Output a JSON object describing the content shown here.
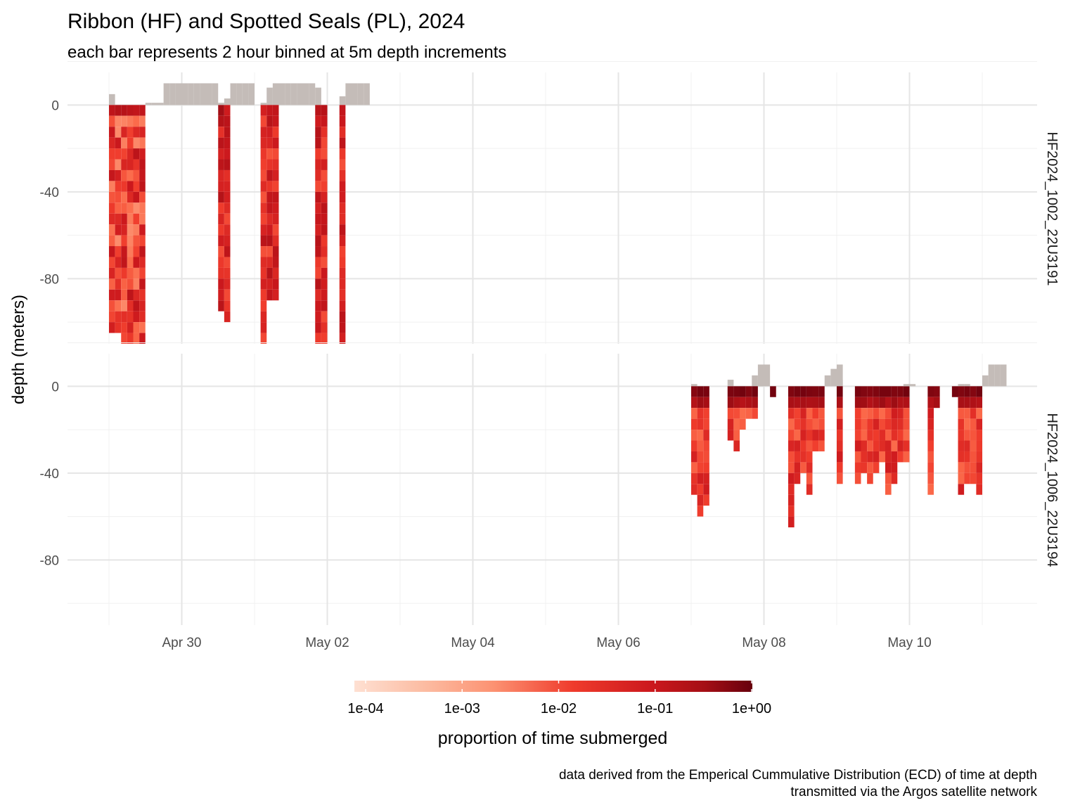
{
  "chart_data": {
    "type": "heatmap",
    "title": "Ribbon (HF) and Spotted Seals (PL), 2024",
    "subtitle": "each bar represents 2 hour binned at 5m depth increments",
    "ylabel": "depth (meters)",
    "yticks": [
      "0",
      "-40",
      "-80"
    ],
    "xticks": [
      "Apr 30",
      "May 02",
      "May 04",
      "May 06",
      "May 08",
      "May 10"
    ],
    "xlim": [
      "2024-04-29 00:00",
      "2024-05-11 20:00"
    ],
    "ylim": [
      -110,
      15
    ],
    "bin_hours": 2,
    "depth_step_m": 5,
    "fill_scale": {
      "title": "proportion of time submerged",
      "trans": "log10",
      "breaks": [
        "1e-04",
        "1e-03",
        "1e-02",
        "1e-01",
        "1e+00"
      ],
      "palette": [
        "#fff5f0",
        "#fcbba1",
        "#fc9272",
        "#fb6a4a",
        "#ef3b2c",
        "#cb181d",
        "#a50f15",
        "#67000d"
      ]
    },
    "panels": [
      {
        "strip_label": "HF2024_1002_22U3191",
        "segments": [
          {
            "start": "2024-04-29 00:00",
            "bins": 6,
            "max_depth": [
              105,
              105,
              110,
              110,
              110,
              110
            ],
            "pattern": "mixed-light",
            "surface": [
              5,
              0,
              0,
              0,
              0,
              0
            ]
          },
          {
            "start": "2024-04-29 12:00",
            "bins": 6,
            "max_depth": [
              0,
              0,
              0,
              0,
              0,
              0
            ],
            "pattern": "none",
            "surface": [
              1,
              1,
              1,
              10,
              10,
              10
            ]
          },
          {
            "start": "2024-04-30 00:00",
            "bins": 6,
            "max_depth": [
              0,
              0,
              0,
              0,
              0,
              0
            ],
            "pattern": "none",
            "surface": [
              10,
              10,
              10,
              10,
              10,
              10
            ]
          },
          {
            "start": "2024-04-30 12:00",
            "bins": 2,
            "max_depth": [
              95,
              100
            ],
            "pattern": "mid",
            "surface": [
              1,
              3
            ]
          },
          {
            "start": "2024-04-30 16:00",
            "bins": 4,
            "max_depth": [
              0,
              0,
              0,
              0
            ],
            "pattern": "none",
            "surface": [
              10,
              10,
              10,
              10
            ]
          },
          {
            "start": "2024-05-01 00:00",
            "bins": 4,
            "max_depth": [
              0,
              110,
              90,
              90
            ],
            "pattern": "mid",
            "surface": [
              0,
              1,
              8,
              10
            ]
          },
          {
            "start": "2024-05-01 08:00",
            "bins": 6,
            "max_depth": [
              0,
              0,
              0,
              0,
              0,
              0
            ],
            "pattern": "none",
            "surface": [
              10,
              10,
              10,
              10,
              10,
              10
            ]
          },
          {
            "start": "2024-05-01 20:00",
            "bins": 2,
            "max_depth": [
              110,
              110
            ],
            "pattern": "mid",
            "surface": [
              8,
              0
            ]
          },
          {
            "start": "2024-05-02 04:00",
            "bins": 1,
            "max_depth": [
              110
            ],
            "pattern": "mid",
            "surface": [
              4
            ]
          },
          {
            "start": "2024-05-02 06:00",
            "bins": 4,
            "max_depth": [
              0,
              0,
              0,
              0
            ],
            "pattern": "none",
            "surface": [
              10,
              10,
              10,
              10
            ]
          }
        ]
      },
      {
        "strip_label": "HF2024_1006_22U3194",
        "segments": [
          {
            "start": "2024-05-07 00:00",
            "bins": 3,
            "max_depth": [
              50,
              60,
              55
            ],
            "pattern": "deep-top",
            "surface": [
              1,
              0,
              0
            ]
          },
          {
            "start": "2024-05-07 12:00",
            "bins": 3,
            "max_depth": [
              25,
              30,
              20
            ],
            "pattern": "deep-top",
            "surface": [
              3,
              0,
              0
            ]
          },
          {
            "start": "2024-05-07 18:00",
            "bins": 3,
            "max_depth": [
              15,
              15,
              0
            ],
            "pattern": "deep-top",
            "surface": [
              0,
              5,
              5
            ]
          },
          {
            "start": "2024-05-07 22:00",
            "bins": 2,
            "max_depth": [
              0,
              0
            ],
            "pattern": "none",
            "surface": [
              10,
              10
            ]
          },
          {
            "start": "2024-05-08 02:00",
            "bins": 1,
            "max_depth": [
              5
            ],
            "pattern": "deep-top",
            "surface": [
              0
            ]
          },
          {
            "start": "2024-05-08 08:00",
            "bins": 6,
            "max_depth": [
              65,
              45,
              40,
              50,
              30,
              30
            ],
            "pattern": "deep-top",
            "surface": [
              0,
              0,
              0,
              0,
              0,
              0
            ]
          },
          {
            "start": "2024-05-08 20:00",
            "bins": 3,
            "max_depth": [
              0,
              0,
              0
            ],
            "pattern": "none",
            "surface": [
              5,
              8,
              10
            ]
          },
          {
            "start": "2024-05-09 00:00",
            "bins": 1,
            "max_depth": [
              45
            ],
            "pattern": "deep-top",
            "surface": [
              3
            ]
          },
          {
            "start": "2024-05-09 06:00",
            "bins": 9,
            "max_depth": [
              45,
              40,
              45,
              40,
              35,
              50,
              45,
              35,
              35
            ],
            "pattern": "deep-top",
            "surface": [
              0,
              0,
              0,
              0,
              0,
              0,
              0,
              0,
              0
            ]
          },
          {
            "start": "2024-05-09 22:00",
            "bins": 2,
            "max_depth": [
              0,
              0
            ],
            "pattern": "none",
            "surface": [
              1,
              1
            ]
          },
          {
            "start": "2024-05-10 06:00",
            "bins": 2,
            "max_depth": [
              50,
              10
            ],
            "pattern": "deep-top",
            "surface": [
              0,
              0
            ]
          },
          {
            "start": "2024-05-10 14:00",
            "bins": 1,
            "max_depth": [
              5
            ],
            "pattern": "deep-top",
            "surface": [
              0
            ]
          },
          {
            "start": "2024-05-10 16:00",
            "bins": 4,
            "max_depth": [
              50,
              45,
              45,
              50
            ],
            "pattern": "deep-top",
            "surface": [
              1,
              1,
              0,
              0
            ]
          },
          {
            "start": "2024-05-11 00:00",
            "bins": 4,
            "max_depth": [
              0,
              0,
              0,
              0
            ],
            "pattern": "none",
            "surface": [
              5,
              10,
              10,
              10
            ]
          }
        ]
      }
    ]
  },
  "caption": {
    "line1": "data derived from the Emperical Cummulative Distribution (ECD) of time at depth",
    "line2": "transmitted via the Argos satellite network"
  },
  "colors": {
    "surface": "#c4bcb8",
    "grid_major": "#e5e5e5",
    "grid_minor": "#f0f0f0",
    "background": "#ffffff"
  }
}
